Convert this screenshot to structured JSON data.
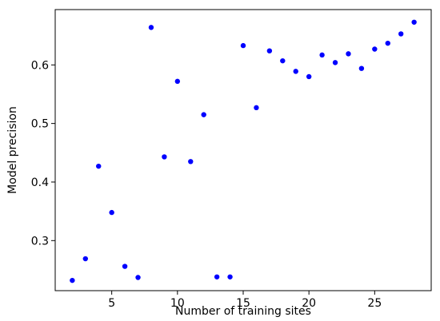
{
  "chart_data": {
    "type": "scatter",
    "xlabel": "Number of training sites",
    "ylabel": "Model precision",
    "xlim": [
      0.7,
      29.3
    ],
    "ylim": [
      0.2145,
      0.6945
    ],
    "x_ticks": [
      5,
      10,
      15,
      20,
      25
    ],
    "x_tick_labels": [
      "5",
      "10",
      "15",
      "20",
      "25"
    ],
    "y_ticks": [
      0.3,
      0.4,
      0.5,
      0.6
    ],
    "y_tick_labels": [
      "0.3",
      "0.4",
      "0.5",
      "0.6"
    ],
    "grid": false,
    "marker_color": "#0000ff",
    "x": [
      2,
      3,
      4,
      5,
      6,
      7,
      8,
      9,
      10,
      11,
      12,
      13,
      14,
      15,
      16,
      17,
      18,
      19,
      20,
      21,
      22,
      23,
      24,
      25,
      26,
      27,
      28
    ],
    "y": [
      0.232,
      0.269,
      0.427,
      0.348,
      0.256,
      0.237,
      0.664,
      0.443,
      0.572,
      0.435,
      0.515,
      0.238,
      0.238,
      0.633,
      0.527,
      0.624,
      0.607,
      0.589,
      0.58,
      0.617,
      0.604,
      0.619,
      0.594,
      0.627,
      0.637,
      0.653,
      0.673
    ]
  }
}
